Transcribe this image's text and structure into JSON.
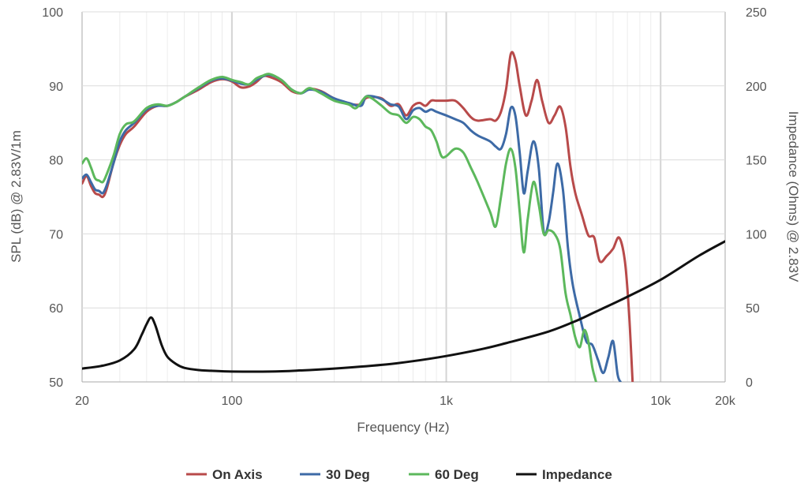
{
  "chart_data": {
    "type": "line",
    "x_scale": "log",
    "xlim": [
      20,
      20000
    ],
    "ylim_left": [
      50,
      100
    ],
    "ylim_right": [
      0,
      250
    ],
    "xlabel": "Frequency (Hz)",
    "ylabel_left": "SPL (dB) @ 2.83V/1m",
    "ylabel_right": "Impedance (Ohms) @ 2.83V",
    "x_ticks": [
      {
        "value": 20,
        "label": "20"
      },
      {
        "value": 100,
        "label": "100"
      },
      {
        "value": 1000,
        "label": "1k"
      },
      {
        "value": 10000,
        "label": "10k"
      },
      {
        "value": 20000,
        "label": "20k"
      }
    ],
    "y_left_ticks": [
      {
        "value": 50,
        "label": "50"
      },
      {
        "value": 60,
        "label": "60"
      },
      {
        "value": 70,
        "label": "70"
      },
      {
        "value": 80,
        "label": "80"
      },
      {
        "value": 90,
        "label": "90"
      },
      {
        "value": 100,
        "label": "100"
      }
    ],
    "y_right_ticks": [
      {
        "value": 0,
        "label": "0"
      },
      {
        "value": 50,
        "label": "50"
      },
      {
        "value": 100,
        "label": "100"
      },
      {
        "value": 150,
        "label": "150"
      },
      {
        "value": 200,
        "label": "200"
      },
      {
        "value": 250,
        "label": "250"
      }
    ],
    "grid": true,
    "legend_position": "bottom-center",
    "series": [
      {
        "name": "On Axis",
        "color": "#b84a4a",
        "axis": "left",
        "points": [
          [
            20,
            76.8
          ],
          [
            21,
            77.8
          ],
          [
            22,
            76.5
          ],
          [
            23,
            75.5
          ],
          [
            24,
            75.3
          ],
          [
            25,
            75.0
          ],
          [
            26,
            76.0
          ],
          [
            28,
            79.5
          ],
          [
            30,
            82.0
          ],
          [
            32,
            83.5
          ],
          [
            35,
            84.5
          ],
          [
            40,
            86.5
          ],
          [
            45,
            87.3
          ],
          [
            50,
            87.3
          ],
          [
            55,
            87.8
          ],
          [
            60,
            88.5
          ],
          [
            70,
            89.5
          ],
          [
            80,
            90.5
          ],
          [
            90,
            90.9
          ],
          [
            100,
            90.6
          ],
          [
            110,
            89.8
          ],
          [
            120,
            89.9
          ],
          [
            130,
            90.5
          ],
          [
            140,
            91.3
          ],
          [
            150,
            91.2
          ],
          [
            170,
            90.5
          ],
          [
            190,
            89.3
          ],
          [
            210,
            89.0
          ],
          [
            230,
            89.6
          ],
          [
            260,
            89.3
          ],
          [
            300,
            88.3
          ],
          [
            350,
            87.6
          ],
          [
            400,
            87.5
          ],
          [
            420,
            88.3
          ],
          [
            450,
            88.5
          ],
          [
            500,
            88.3
          ],
          [
            550,
            87.3
          ],
          [
            600,
            87.5
          ],
          [
            650,
            86.0
          ],
          [
            700,
            87.3
          ],
          [
            750,
            87.7
          ],
          [
            800,
            87.3
          ],
          [
            850,
            88.0
          ],
          [
            900,
            88.0
          ],
          [
            1000,
            88.0
          ],
          [
            1100,
            88.0
          ],
          [
            1200,
            87.0
          ],
          [
            1300,
            85.8
          ],
          [
            1400,
            85.3
          ],
          [
            1600,
            85.5
          ],
          [
            1700,
            85.3
          ],
          [
            1800,
            86.5
          ],
          [
            1900,
            89.5
          ],
          [
            2000,
            94.3
          ],
          [
            2100,
            93.5
          ],
          [
            2200,
            90.0
          ],
          [
            2350,
            86.0
          ],
          [
            2500,
            88.0
          ],
          [
            2650,
            90.8
          ],
          [
            2800,
            88.0
          ],
          [
            3000,
            85.0
          ],
          [
            3200,
            86.0
          ],
          [
            3400,
            87.2
          ],
          [
            3600,
            84.5
          ],
          [
            3800,
            79.0
          ],
          [
            4000,
            75.5
          ],
          [
            4300,
            72.5
          ],
          [
            4600,
            69.8
          ],
          [
            4900,
            69.5
          ],
          [
            5200,
            66.3
          ],
          [
            5600,
            67.0
          ],
          [
            6000,
            68.0
          ],
          [
            6400,
            69.5
          ],
          [
            6800,
            66.5
          ],
          [
            7100,
            60.0
          ],
          [
            7400,
            50.0
          ]
        ]
      },
      {
        "name": "30 Deg",
        "color": "#3d6aa6",
        "axis": "left",
        "points": [
          [
            20,
            77.5
          ],
          [
            21,
            78.0
          ],
          [
            22,
            77.0
          ],
          [
            23,
            76.0
          ],
          [
            24,
            75.8
          ],
          [
            25,
            75.5
          ],
          [
            26,
            76.5
          ],
          [
            28,
            79.5
          ],
          [
            30,
            82.5
          ],
          [
            32,
            84.0
          ],
          [
            35,
            85.0
          ],
          [
            40,
            86.8
          ],
          [
            45,
            87.3
          ],
          [
            50,
            87.3
          ],
          [
            55,
            87.8
          ],
          [
            60,
            88.5
          ],
          [
            70,
            89.7
          ],
          [
            80,
            90.7
          ],
          [
            90,
            91.0
          ],
          [
            100,
            90.7
          ],
          [
            110,
            90.3
          ],
          [
            120,
            90.2
          ],
          [
            130,
            90.8
          ],
          [
            140,
            91.3
          ],
          [
            150,
            91.5
          ],
          [
            170,
            90.8
          ],
          [
            190,
            89.5
          ],
          [
            210,
            89.0
          ],
          [
            230,
            89.5
          ],
          [
            260,
            89.2
          ],
          [
            300,
            88.3
          ],
          [
            350,
            87.7
          ],
          [
            400,
            87.3
          ],
          [
            420,
            88.5
          ],
          [
            450,
            88.6
          ],
          [
            500,
            88.2
          ],
          [
            550,
            87.5
          ],
          [
            600,
            87.2
          ],
          [
            650,
            85.5
          ],
          [
            700,
            86.7
          ],
          [
            750,
            87.0
          ],
          [
            800,
            86.5
          ],
          [
            850,
            86.8
          ],
          [
            900,
            86.5
          ],
          [
            1000,
            86.0
          ],
          [
            1100,
            85.5
          ],
          [
            1200,
            85.0
          ],
          [
            1300,
            84.0
          ],
          [
            1400,
            83.3
          ],
          [
            1600,
            82.5
          ],
          [
            1700,
            81.8
          ],
          [
            1800,
            81.5
          ],
          [
            1900,
            83.5
          ],
          [
            2000,
            87.0
          ],
          [
            2100,
            86.0
          ],
          [
            2200,
            81.0
          ],
          [
            2300,
            75.5
          ],
          [
            2400,
            78.5
          ],
          [
            2550,
            82.5
          ],
          [
            2700,
            79.0
          ],
          [
            2850,
            70.3
          ],
          [
            3000,
            71.5
          ],
          [
            3150,
            75.5
          ],
          [
            3300,
            79.5
          ],
          [
            3500,
            76.0
          ],
          [
            3700,
            68.0
          ],
          [
            3900,
            63.0
          ],
          [
            4200,
            58.8
          ],
          [
            4500,
            55.5
          ],
          [
            4800,
            55.0
          ],
          [
            5100,
            53.0
          ],
          [
            5400,
            51.2
          ],
          [
            5700,
            53.3
          ],
          [
            6000,
            55.5
          ],
          [
            6300,
            51.0
          ],
          [
            6500,
            50.0
          ]
        ]
      },
      {
        "name": "60 Deg",
        "color": "#5cb85c",
        "axis": "left",
        "points": [
          [
            20,
            79.5
          ],
          [
            21,
            80.2
          ],
          [
            22,
            79.0
          ],
          [
            23,
            77.5
          ],
          [
            24,
            77.2
          ],
          [
            25,
            77.0
          ],
          [
            26,
            78.0
          ],
          [
            28,
            80.5
          ],
          [
            30,
            83.5
          ],
          [
            32,
            84.8
          ],
          [
            35,
            85.2
          ],
          [
            40,
            87.0
          ],
          [
            45,
            87.5
          ],
          [
            50,
            87.3
          ],
          [
            55,
            87.8
          ],
          [
            60,
            88.5
          ],
          [
            70,
            89.8
          ],
          [
            80,
            90.8
          ],
          [
            90,
            91.2
          ],
          [
            100,
            90.8
          ],
          [
            110,
            90.5
          ],
          [
            120,
            90.2
          ],
          [
            130,
            91.0
          ],
          [
            140,
            91.4
          ],
          [
            150,
            91.6
          ],
          [
            170,
            90.8
          ],
          [
            190,
            89.5
          ],
          [
            210,
            89.0
          ],
          [
            230,
            89.7
          ],
          [
            260,
            89.0
          ],
          [
            300,
            88.0
          ],
          [
            350,
            87.5
          ],
          [
            380,
            87.0
          ],
          [
            420,
            88.5
          ],
          [
            450,
            88.3
          ],
          [
            500,
            87.3
          ],
          [
            550,
            86.3
          ],
          [
            600,
            86.0
          ],
          [
            650,
            85.0
          ],
          [
            700,
            85.8
          ],
          [
            750,
            85.5
          ],
          [
            800,
            84.5
          ],
          [
            850,
            84.0
          ],
          [
            900,
            82.5
          ],
          [
            950,
            80.5
          ],
          [
            1000,
            80.5
          ],
          [
            1100,
            81.5
          ],
          [
            1200,
            81.0
          ],
          [
            1300,
            79.0
          ],
          [
            1400,
            77.0
          ],
          [
            1600,
            73.0
          ],
          [
            1700,
            71.0
          ],
          [
            1800,
            75.0
          ],
          [
            1900,
            79.5
          ],
          [
            2000,
            81.5
          ],
          [
            2100,
            79.0
          ],
          [
            2200,
            73.0
          ],
          [
            2300,
            67.5
          ],
          [
            2400,
            72.0
          ],
          [
            2550,
            77.0
          ],
          [
            2700,
            74.0
          ],
          [
            2850,
            70.0
          ],
          [
            3000,
            70.5
          ],
          [
            3200,
            70.0
          ],
          [
            3400,
            68.0
          ],
          [
            3600,
            62.0
          ],
          [
            3800,
            59.0
          ],
          [
            4000,
            56.0
          ],
          [
            4200,
            54.7
          ],
          [
            4400,
            57.0
          ],
          [
            4600,
            55.5
          ],
          [
            4800,
            52.0
          ],
          [
            5000,
            50.0
          ]
        ]
      },
      {
        "name": "Impedance",
        "color": "#111111",
        "axis": "right",
        "points": [
          [
            20,
            9.0
          ],
          [
            25,
            11.0
          ],
          [
            30,
            14.5
          ],
          [
            35,
            22.0
          ],
          [
            38,
            32.0
          ],
          [
            40,
            39.0
          ],
          [
            42,
            43.5
          ],
          [
            44,
            38.0
          ],
          [
            47,
            25.0
          ],
          [
            50,
            17.0
          ],
          [
            55,
            12.0
          ],
          [
            60,
            9.5
          ],
          [
            70,
            8.0
          ],
          [
            80,
            7.5
          ],
          [
            100,
            7.0
          ],
          [
            150,
            7.0
          ],
          [
            200,
            7.6
          ],
          [
            300,
            9.0
          ],
          [
            500,
            11.5
          ],
          [
            700,
            14.0
          ],
          [
            1000,
            17.5
          ],
          [
            1500,
            22.5
          ],
          [
            2000,
            27.0
          ],
          [
            3000,
            34.0
          ],
          [
            4000,
            41.0
          ],
          [
            5000,
            47.5
          ],
          [
            7000,
            57.5
          ],
          [
            10000,
            69.0
          ],
          [
            15000,
            85.0
          ],
          [
            20000,
            95.0
          ]
        ]
      }
    ]
  }
}
